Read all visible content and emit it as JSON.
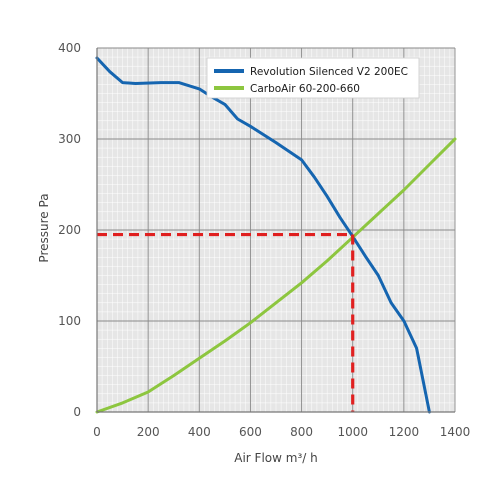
{
  "chart_data": {
    "type": "line",
    "xlabel": "Air Flow m³/ h",
    "ylabel": "Pressure Pa",
    "xlim": [
      0,
      1400
    ],
    "ylim": [
      0,
      400
    ],
    "x_ticks": [
      "0",
      "200",
      "400",
      "600",
      "800",
      "1000",
      "1200",
      "1400"
    ],
    "y_ticks": [
      "0",
      "100",
      "200",
      "300",
      "400"
    ],
    "grid": true,
    "legend_position": "top-right",
    "series": [
      {
        "name": "Revolution Silenced V2 200EC",
        "color": "#1565b0",
        "x": [
          0,
          50,
          100,
          150,
          250,
          320,
          400,
          450,
          500,
          550,
          600,
          700,
          800,
          850,
          900,
          950,
          1000,
          1050,
          1100,
          1150,
          1200,
          1250,
          1300
        ],
        "y": [
          389,
          374,
          362,
          361,
          362,
          362,
          355,
          346,
          338,
          322,
          314,
          296,
          277,
          258,
          237,
          214,
          193,
          171,
          150,
          120,
          100,
          70,
          0
        ]
      },
      {
        "name": "CarboAir 60-200-660",
        "color": "#8dc63f",
        "x": [
          0,
          100,
          200,
          300,
          400,
          500,
          600,
          700,
          800,
          900,
          1000,
          1100,
          1200,
          1300,
          1400
        ],
        "y": [
          0,
          10,
          22,
          40,
          59,
          78,
          98,
          120,
          142,
          166,
          192,
          218,
          244,
          272,
          300
        ]
      }
    ],
    "reference_lines": [
      {
        "axis": "x",
        "value": 1000,
        "color": "#e02020"
      },
      {
        "axis": "y",
        "value": 195,
        "color": "#e02020"
      }
    ]
  }
}
